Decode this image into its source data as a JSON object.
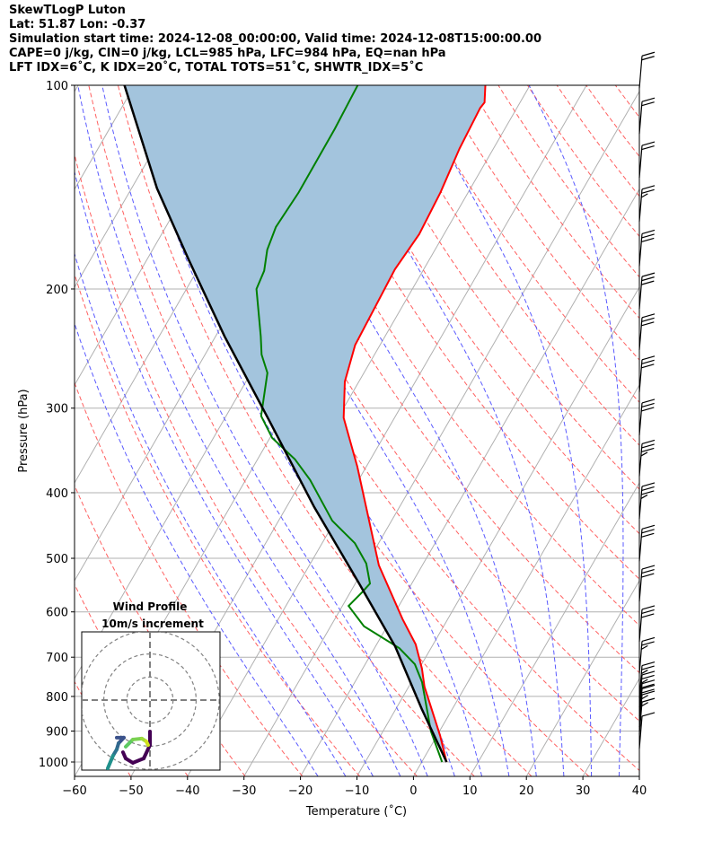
{
  "header": {
    "title": "SkewTLogP Luton",
    "location": "Lat: 51.87   Lon: -0.37",
    "times": "Simulation start time: 2024-12-08_00:00:00, Valid time: 2024-12-08T15:00:00.00",
    "indices1": "CAPE=0 j/kg, CIN=0 j/kg, LCL=985 hPa, LFC=984 hPa, EQ=nan hPa",
    "indices2": "LFT IDX=6˚C, K IDX=20˚C, TOTAL TOTS=51˚C, SHWTR_IDX=5˚C"
  },
  "chart_data": {
    "type": "line",
    "subtype": "skew-T log-P",
    "xlabel": "Temperature (˚C)",
    "ylabel": "Pressure (hPa)",
    "xlim": [
      -60,
      40
    ],
    "ylim": [
      1050,
      100
    ],
    "xticks": [
      "−60",
      "−50",
      "−40",
      "−30",
      "−20",
      "−10",
      "0",
      "10",
      "20",
      "30",
      "40"
    ],
    "xtick_values": [
      -60,
      -50,
      -40,
      -30,
      -20,
      -10,
      0,
      10,
      20,
      30,
      40
    ],
    "yticks": [
      "100",
      "200",
      "300",
      "400",
      "500",
      "600",
      "700",
      "800",
      "900",
      "1000"
    ],
    "ytick_values": [
      100,
      200,
      300,
      400,
      500,
      600,
      700,
      800,
      900,
      1000
    ],
    "grid": true,
    "colors": {
      "temperature": "#ff0000",
      "dewpoint": "#008000",
      "parcel": "#000000",
      "cape_fill": "#a3c4dd",
      "isotherm": "#b0b0b0",
      "dry_adiabat": "#ff6060",
      "moist_adiabat": "#5a5aff"
    },
    "temperature": {
      "p": [
        1000,
        915,
        774,
        728,
        670,
        615,
        512,
        366,
        310,
        274,
        242,
        187,
        166,
        144,
        124,
        108,
        106,
        100
      ],
      "t": [
        4.4,
        0.6,
        -7.2,
        -9.5,
        -13.1,
        -18.0,
        -27.7,
        -41.6,
        -49.0,
        -52.5,
        -54.4,
        -55.1,
        -54.4,
        -54.9,
        -56.0,
        -56.5,
        -56.3,
        -57.9
      ]
    },
    "dewpoint": {
      "p": [
        1000,
        901,
        762,
        717,
        679,
        630,
        588,
        561,
        545,
        509,
        475,
        440,
        383,
        357,
        332,
        308,
        266,
        250,
        235,
        200,
        188,
        175,
        162,
        144,
        116,
        100
      ],
      "t": [
        3.6,
        -1.5,
        -8.1,
        -11.2,
        -15.6,
        -24.1,
        -28.9,
        -27.9,
        -27.4,
        -30.1,
        -34.2,
        -40.5,
        -48.6,
        -53.4,
        -59.6,
        -63.8,
        -67.1,
        -70.0,
        -72.0,
        -77.6,
        -78.1,
        -79.7,
        -80.5,
        -80.0,
        -80.1,
        -80.5
      ]
    },
    "parcel": {
      "p": [
        1000,
        835,
        675,
        545,
        420,
        314,
        235,
        181,
        142,
        100
      ],
      "t": [
        4.4,
        -5.4,
        -16.5,
        -29.3,
        -45.1,
        -61.7,
        -78.4,
        -92.6,
        -105.5,
        -121.8
      ]
    },
    "isotherms_c": [
      -140,
      -130,
      -120,
      -110,
      -100,
      -90,
      -80,
      -70,
      -60,
      -50,
      -40,
      -30,
      -20,
      -10,
      0,
      10,
      20,
      30,
      40
    ],
    "dry_adiabats_k": [
      220,
      230,
      240,
      250,
      260,
      270,
      280,
      290,
      300,
      310,
      320,
      330,
      340,
      350,
      360,
      370,
      380,
      390,
      400,
      410,
      420,
      430,
      440,
      450,
      460,
      470
    ],
    "moist_adiabats_c": [
      -20,
      -15,
      -10,
      -5,
      0,
      5,
      10,
      15,
      20,
      25,
      30,
      35,
      40
    ],
    "wind_barbs": {
      "p": [
        101,
        118,
        137,
        159,
        185,
        214,
        246,
        284,
        329,
        378,
        437,
        505,
        579,
        664,
        740,
        804,
        830,
        855,
        870,
        888,
        910,
        955
      ],
      "speed_kt": [
        20,
        20,
        20,
        25,
        30,
        30,
        30,
        30,
        30,
        35,
        35,
        30,
        30,
        30,
        25,
        25,
        25,
        20,
        20,
        15,
        15,
        10
      ]
    },
    "hodograph": {
      "title": "Wind Profile",
      "subtitle": "10m/s increment",
      "rings_ms": [
        10,
        20,
        30
      ],
      "u": [
        0,
        0,
        -2.7,
        -7.4,
        -10.5,
        -11.7,
        -14.4,
        -11.3,
        -13.6,
        -14.4,
        -16.0,
        -18.3,
        -10.5,
        -7.4,
        -3.5,
        -1.6,
        -0.8
      ],
      "v": [
        -13.6,
        -19.5,
        -25.3,
        -27.2,
        -25.3,
        -22.6,
        -16.3,
        -16.3,
        -18.7,
        -21.4,
        -24.1,
        -29.6,
        -20.2,
        -17.1,
        -16.7,
        -17.9,
        -19.5
      ],
      "colors": [
        "#440154",
        "#440154",
        "#440154",
        "#440154",
        "#440154",
        "#440154",
        "#3b528b",
        "#3b528b",
        "#31688e",
        "#2c728e",
        "#21918c",
        "#21918c",
        "#5ec962",
        "#7ad151",
        "#a0da39",
        "#d0e11c",
        "#fde725"
      ]
    }
  }
}
